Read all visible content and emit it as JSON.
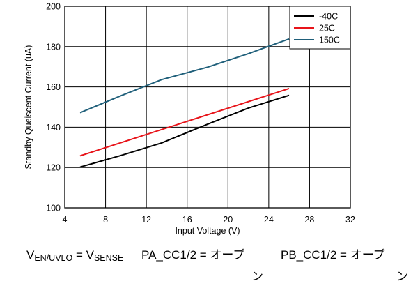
{
  "chart_data": {
    "type": "line",
    "xlabel": "Input Voltage (V)",
    "ylabel": "Standby Queiscent Current (uA)",
    "xlim": [
      4,
      32
    ],
    "ylim": [
      100,
      200
    ],
    "xticks": [
      4,
      8,
      12,
      16,
      20,
      24,
      28,
      32
    ],
    "yticks": [
      100,
      120,
      140,
      160,
      180,
      200
    ],
    "grid": true,
    "legend_position": "top-right",
    "series": [
      {
        "name": "-40C",
        "color": "#000000",
        "x": [
          5.5,
          9.5,
          13.5,
          18,
          22,
          26
        ],
        "y": [
          120.2,
          126,
          132.2,
          141.5,
          149.5,
          155.8
        ]
      },
      {
        "name": "25C",
        "color": "#e8141a",
        "x": [
          5.5,
          26
        ],
        "y": [
          125.8,
          159.2
        ]
      },
      {
        "name": "150C",
        "color": "#1f5f7a",
        "x": [
          5.5,
          9.5,
          13.5,
          18,
          22,
          26
        ],
        "y": [
          147.2,
          155.6,
          163.6,
          169.8,
          176.5,
          183.8
        ]
      }
    ]
  },
  "caption": {
    "cond1": {
      "v1_main": "V",
      "v1_sub": "EN/UVLO",
      "eq": " = ",
      "v2_main": "V",
      "v2_sub": "SENSE"
    },
    "cond2": {
      "label": "PA_CC1/2 = ",
      "value_line1": "オープ",
      "value_line2": "ン"
    },
    "cond3": {
      "label": "PB_CC1/2 = ",
      "value_line1": "オープ",
      "value_line2": "ン"
    }
  }
}
